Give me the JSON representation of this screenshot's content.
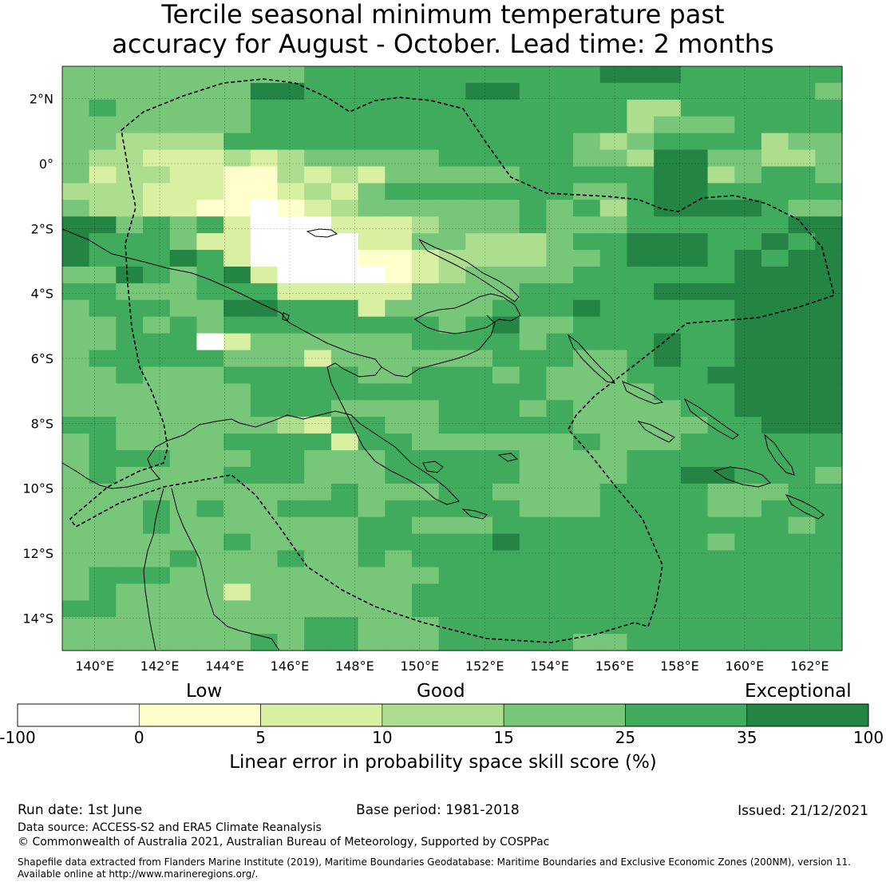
{
  "title": {
    "line1": "Tercile seasonal minimum temperature past",
    "line2": "accuracy for August - October. Lead time: 2 months"
  },
  "map": {
    "lon_ticks": [
      "140°E",
      "142°E",
      "144°E",
      "146°E",
      "148°E",
      "150°E",
      "152°E",
      "154°E",
      "156°E",
      "158°E",
      "160°E",
      "162°E"
    ],
    "lat_ticks": [
      "2°N",
      "0°",
      "2°S",
      "4°S",
      "6°S",
      "8°S",
      "10°S",
      "12°S",
      "14°S"
    ],
    "grid_legend": {
      "0": "#ffffff",
      "1": "#ffffcc",
      "2": "#d9f0a3",
      "3": "#addd8e",
      "4": "#78c679",
      "5": "#41ab5d",
      "6": "#238443"
    },
    "grid_rows": [
      "44444444455555555555666555555",
      "44444446655555566555555555554",
      "45444445555555555555533555555",
      "44444445555555555555534445555",
      "44333355555555555554345555344",
      "43322232344444555554436644334",
      "42332211323244444555556634554",
      "33322211232455555554456655555",
      "43322110123444444545356666544",
      "66454520002223444544455555566",
      "65554220000224433345566655656",
      "65556520000112333344566656566",
      "44654562000012344445555556666",
      "55444555222224444555556666666",
      "45554466555244445556555556666",
      "44545455555555456445555556666",
      "44555024444445555455556556666",
      "45555544424444445554456556666",
      "44544455555445554544455566666",
      "44444445555555555544445556666",
      "44444445554444555454444556666",
      "55444444325544555554444455666",
      "45444455552554444445444555555",
      "45554445544455555444455555555",
      "45444455544455555444455665554",
      "44444444445444554444555544455",
      "44454544555455555444555544555",
      "44454444444554445555555555545",
      "44444454444555556555555545555",
      "44445444544545555555555555555",
      "45554444444444555555555555555",
      "45444424444445555555555555555",
      "55444444444445555555555555555",
      "44444444455444555555555555555",
      "44444445455444555554455555555"
    ]
  },
  "colorbar": {
    "category_low": "Low",
    "category_good": "Good",
    "category_exceptional": "Exceptional",
    "ticks": [
      "-100",
      "0",
      "5",
      "10",
      "15",
      "25",
      "35",
      "100"
    ],
    "colors": [
      "#ffffff",
      "#ffffcc",
      "#d9f0a3",
      "#addd8e",
      "#78c679",
      "#41ab5d",
      "#238443"
    ],
    "label": "Linear error in probability space skill score (%)"
  },
  "footer": {
    "run_date": "Run date: 1st June",
    "base_period": "Base period: 1981-2018",
    "issued": "Issued: 21/12/2021",
    "data_source": "Data source: ACCESS-S2 and ERA5 Climate Reanalysis",
    "copyright": "© Commonwealth of Australia 2021, Australian Bureau of Meteorology, Supported by COSPPac",
    "shapefile_line1": "Shapefile data extracted from Flanders Marine Institute (2019), Maritime Boundaries Geodatabase: Maritime Boundaries and Exclusive Economic Zones (200NM), version 11.",
    "shapefile_line2": "Available online at http://www.marineregions.org/."
  }
}
